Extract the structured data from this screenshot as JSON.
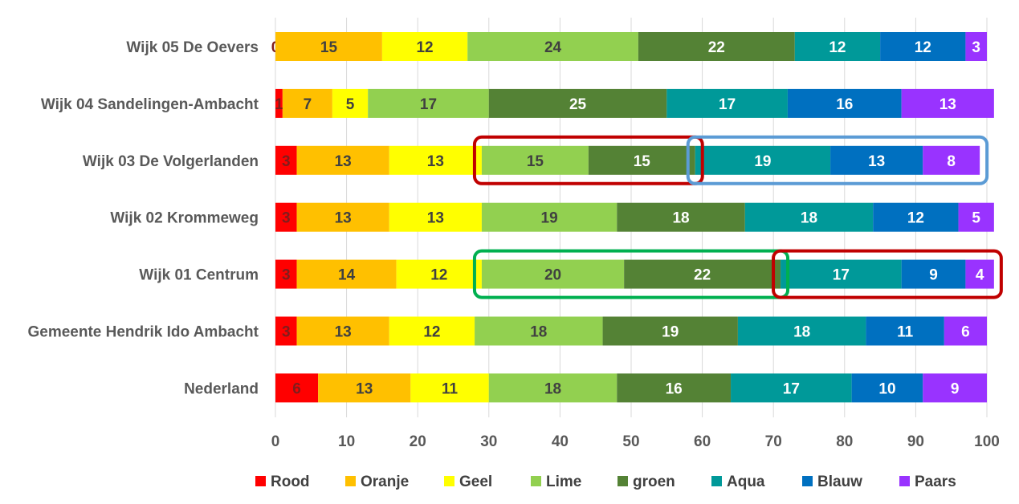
{
  "chart_data": {
    "type": "bar",
    "orientation": "horizontal",
    "stacked": true,
    "categories": [
      "Wijk 05 De Oevers",
      "Wijk 04 Sandelingen-Ambacht",
      "Wijk 03 De Volgerlanden",
      "Wijk 02 Krommeweg",
      "Wijk 01 Centrum",
      "Gemeente Hendrik Ido Ambacht",
      "Nederland"
    ],
    "series": [
      {
        "name": "Rood",
        "color": "#ff0000",
        "label_color": "#7f1d1d",
        "values": [
          0,
          1,
          3,
          3,
          3,
          3,
          6
        ]
      },
      {
        "name": "Oranje",
        "color": "#ffc000",
        "label_color": "#404040",
        "values": [
          15,
          7,
          13,
          13,
          14,
          13,
          13
        ]
      },
      {
        "name": "Geel",
        "color": "#ffff00",
        "label_color": "#404040",
        "values": [
          12,
          5,
          13,
          13,
          12,
          12,
          11
        ]
      },
      {
        "name": "Lime",
        "color": "#92d050",
        "label_color": "#404040",
        "values": [
          24,
          17,
          15,
          19,
          20,
          18,
          18
        ]
      },
      {
        "name": "groen",
        "color": "#548235",
        "label_color": "#ffffff",
        "values": [
          22,
          25,
          15,
          18,
          22,
          19,
          16
        ]
      },
      {
        "name": "Aqua",
        "color": "#009999",
        "label_color": "#ffffff",
        "values": [
          12,
          17,
          19,
          18,
          17,
          18,
          17
        ]
      },
      {
        "name": "Blauw",
        "color": "#0070c0",
        "label_color": "#ffffff",
        "values": [
          12,
          16,
          13,
          12,
          9,
          11,
          10
        ]
      },
      {
        "name": "Paars",
        "color": "#9933ff",
        "label_color": "#ffffff",
        "values": [
          3,
          13,
          8,
          5,
          4,
          6,
          9
        ]
      }
    ],
    "xlim": [
      0,
      100
    ],
    "xticks": [
      0,
      10,
      20,
      30,
      40,
      50,
      60,
      70,
      80,
      90,
      100
    ],
    "grid": true,
    "legend_position": "bottom",
    "highlights": [
      {
        "category": "Wijk 03 De Volgerlanden",
        "series_from": "Lime",
        "series_to": "groen",
        "color": "#c00000"
      },
      {
        "category": "Wijk 03 De Volgerlanden",
        "series_from": "Aqua",
        "series_to": "Paars",
        "color": "#5b9bd5"
      },
      {
        "category": "Wijk 01 Centrum",
        "series_from": "Lime",
        "series_to": "groen",
        "color": "#00b050"
      },
      {
        "category": "Wijk 01 Centrum",
        "series_from": "Aqua",
        "series_to": "Paars",
        "color": "#c00000"
      }
    ]
  }
}
